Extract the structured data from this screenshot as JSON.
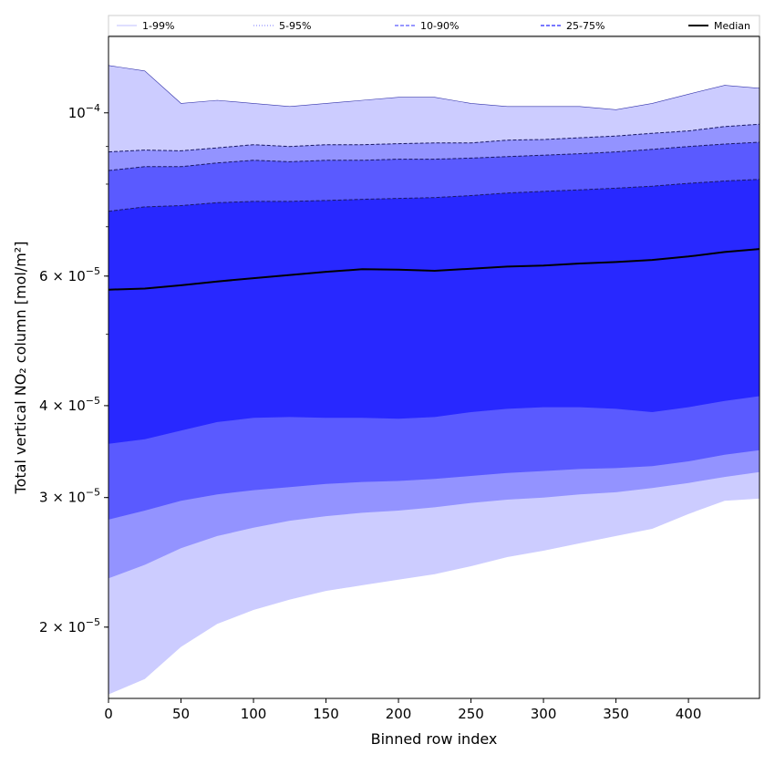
{
  "chart_data": {
    "type": "area",
    "xlabel": "Binned row index",
    "ylabel": "Total vertical NO₂ column [mol/m²]",
    "xlim": [
      0,
      449
    ],
    "ylim": [
      1.6e-05,
      0.000127
    ],
    "yscale": "log",
    "x_ticks": [
      0,
      50,
      100,
      150,
      200,
      250,
      300,
      350,
      400
    ],
    "y_ticks": [
      {
        "value": 0.0001,
        "mant": "10",
        "exp": "−4"
      },
      {
        "value": 6e-05,
        "mant": "6 × 10",
        "exp": "−5"
      },
      {
        "value": 4e-05,
        "mant": "4 × 10",
        "exp": "−5"
      },
      {
        "value": 3e-05,
        "mant": "3 × 10",
        "exp": "−5"
      },
      {
        "value": 2e-05,
        "mant": "2 × 10",
        "exp": "−5"
      }
    ],
    "x": [
      0,
      25,
      50,
      75,
      100,
      125,
      150,
      175,
      200,
      225,
      250,
      275,
      300,
      325,
      350,
      375,
      400,
      425,
      449
    ],
    "series": [
      {
        "name": "1-99%",
        "color": "#ccccff",
        "lower": [
          1.62e-05,
          1.7e-05,
          1.88e-05,
          2.02e-05,
          2.11e-05,
          2.18e-05,
          2.24e-05,
          2.28e-05,
          2.32e-05,
          2.36e-05,
          2.42e-05,
          2.49e-05,
          2.54e-05,
          2.6e-05,
          2.66e-05,
          2.72e-05,
          2.85e-05,
          2.97e-05,
          2.99e-05
        ],
        "upper": [
          0.000116,
          0.000114,
          0.000103,
          0.000104,
          0.000103,
          0.000102,
          0.000103,
          0.000104,
          0.000105,
          0.000105,
          0.000103,
          0.000102,
          0.000102,
          0.000102,
          0.000101,
          0.000103,
          0.000106,
          0.000109,
          0.000108
        ]
      },
      {
        "name": "5-95%",
        "color": "#9393ff",
        "lower": [
          2.33e-05,
          2.43e-05,
          2.56e-05,
          2.66e-05,
          2.73e-05,
          2.79e-05,
          2.83e-05,
          2.86e-05,
          2.88e-05,
          2.91e-05,
          2.95e-05,
          2.98e-05,
          3e-05,
          3.03e-05,
          3.05e-05,
          3.09e-05,
          3.14e-05,
          3.2e-05,
          3.25e-05
        ],
        "upper": [
          8.85e-05,
          8.9e-05,
          8.88e-05,
          8.96e-05,
          9.05e-05,
          9e-05,
          9.05e-05,
          9.05e-05,
          9.08e-05,
          9.1e-05,
          9.1e-05,
          9.18e-05,
          9.2e-05,
          9.25e-05,
          9.3e-05,
          9.38e-05,
          9.45e-05,
          9.58e-05,
          9.65e-05
        ]
      },
      {
        "name": "10-90%",
        "color": "#5a5aff",
        "lower": [
          2.8e-05,
          2.88e-05,
          2.97e-05,
          3.03e-05,
          3.07e-05,
          3.1e-05,
          3.13e-05,
          3.15e-05,
          3.16e-05,
          3.18e-05,
          3.21e-05,
          3.24e-05,
          3.26e-05,
          3.28e-05,
          3.29e-05,
          3.31e-05,
          3.36e-05,
          3.43e-05,
          3.48e-05
        ],
        "upper": [
          8.35e-05,
          8.45e-05,
          8.45e-05,
          8.55e-05,
          8.62e-05,
          8.58e-05,
          8.62e-05,
          8.62e-05,
          8.65e-05,
          8.65e-05,
          8.68e-05,
          8.72e-05,
          8.76e-05,
          8.8e-05,
          8.85e-05,
          8.92e-05,
          9e-05,
          9.07e-05,
          9.12e-05
        ]
      },
      {
        "name": "25-75%",
        "color": "#2828ff",
        "lower": [
          3.55e-05,
          3.6e-05,
          3.7e-05,
          3.8e-05,
          3.85e-05,
          3.86e-05,
          3.85e-05,
          3.85e-05,
          3.84e-05,
          3.86e-05,
          3.92e-05,
          3.96e-05,
          3.98e-05,
          3.98e-05,
          3.96e-05,
          3.92e-05,
          3.98e-05,
          4.06e-05,
          4.12e-05
        ],
        "upper": [
          7.35e-05,
          7.45e-05,
          7.48e-05,
          7.55e-05,
          7.58e-05,
          7.58e-05,
          7.6e-05,
          7.63e-05,
          7.65e-05,
          7.67e-05,
          7.72e-05,
          7.78e-05,
          7.82e-05,
          7.86e-05,
          7.9e-05,
          7.95e-05,
          8.02e-05,
          8.08e-05,
          8.12e-05
        ]
      }
    ],
    "median": {
      "name": "Median",
      "color": "#000000",
      "values": [
        5.75e-05,
        5.77e-05,
        5.83e-05,
        5.9e-05,
        5.96e-05,
        6.02e-05,
        6.08e-05,
        6.13e-05,
        6.12e-05,
        6.1e-05,
        6.14e-05,
        6.18e-05,
        6.2e-05,
        6.24e-05,
        6.27e-05,
        6.31e-05,
        6.38e-05,
        6.47e-05,
        6.53e-05
      ]
    },
    "legend": [
      {
        "label": "1-99%",
        "color": "#ccccff",
        "dash": "solid"
      },
      {
        "label": "5-95%",
        "color": "#9393ff",
        "dash": "dotted"
      },
      {
        "label": "10-90%",
        "color": "#5a5aff",
        "dash": "dashed"
      },
      {
        "label": "25-75%",
        "color": "#2828ff",
        "dash": "dashed"
      },
      {
        "label": "Median",
        "color": "#000000",
        "dash": "solid"
      }
    ],
    "legend_position": "top",
    "grid": false
  }
}
